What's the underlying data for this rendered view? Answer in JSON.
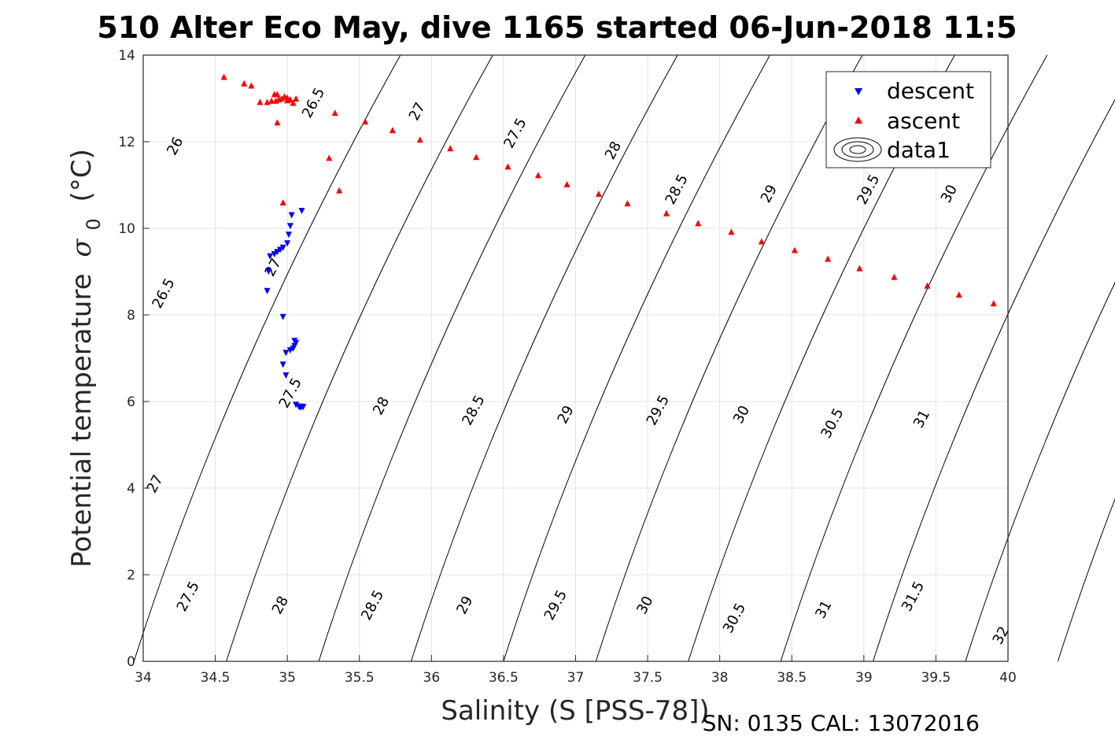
{
  "title": "510 Alter Eco May, dive 1165 started 06-Jun-2018 11:5",
  "footer": "SN: 0135  CAL: 13072016",
  "chart_data": {
    "type": "scatter",
    "xlabel": "Salinity (S [PSS-78])",
    "ylabel_main": "Potential temperature",
    "ylabel_symbol": "σ",
    "ylabel_subscript": "0",
    "ylabel_unit": "(°C)",
    "xlim": [
      34,
      40
    ],
    "ylim": [
      0,
      14
    ],
    "xticks": [
      "34",
      "34.5",
      "35",
      "35.5",
      "36",
      "36.5",
      "37",
      "37.5",
      "38",
      "38.5",
      "39",
      "39.5",
      "40"
    ],
    "yticks": [
      "0",
      "2",
      "4",
      "6",
      "8",
      "10",
      "12",
      "14"
    ],
    "grid": true,
    "legend_position": "top-right",
    "series": [
      {
        "name": "descent",
        "marker": "down-triangle",
        "color": "#0000ff",
        "points": [
          [
            35.1,
            10.4
          ],
          [
            35.03,
            10.3
          ],
          [
            35.02,
            10.05
          ],
          [
            35.01,
            9.85
          ],
          [
            35.0,
            9.65
          ],
          [
            34.97,
            9.55
          ],
          [
            34.95,
            9.5
          ],
          [
            34.93,
            9.45
          ],
          [
            34.91,
            9.4
          ],
          [
            34.88,
            9.35
          ],
          [
            34.87,
            9.0
          ],
          [
            34.86,
            8.55
          ],
          [
            34.97,
            7.95
          ],
          [
            35.05,
            7.4
          ],
          [
            35.06,
            7.35
          ],
          [
            35.05,
            7.28
          ],
          [
            35.04,
            7.22
          ],
          [
            35.02,
            7.18
          ],
          [
            34.99,
            7.12
          ],
          [
            34.97,
            6.85
          ],
          [
            34.99,
            6.6
          ],
          [
            35.06,
            5.92
          ],
          [
            35.08,
            5.88
          ],
          [
            35.09,
            5.86
          ],
          [
            35.1,
            5.88
          ],
          [
            35.11,
            5.87
          ]
        ]
      },
      {
        "name": "ascent",
        "marker": "up-triangle",
        "color": "#ff0000",
        "points": [
          [
            34.56,
            13.5
          ],
          [
            34.7,
            13.35
          ],
          [
            34.75,
            13.3
          ],
          [
            34.91,
            13.1
          ],
          [
            34.93,
            13.1
          ],
          [
            34.98,
            13.05
          ],
          [
            35.0,
            13.02
          ],
          [
            34.96,
            13.0
          ],
          [
            34.94,
            12.98
          ],
          [
            34.92,
            12.95
          ],
          [
            34.89,
            12.95
          ],
          [
            34.86,
            12.92
          ],
          [
            34.81,
            12.92
          ],
          [
            35.0,
            12.96
          ],
          [
            35.02,
            12.98
          ],
          [
            35.06,
            13.0
          ],
          [
            35.04,
            12.9
          ],
          [
            34.93,
            12.45
          ],
          [
            35.33,
            12.67
          ],
          [
            35.54,
            12.47
          ],
          [
            35.73,
            12.27
          ],
          [
            35.92,
            12.05
          ],
          [
            36.13,
            11.85
          ],
          [
            36.31,
            11.65
          ],
          [
            36.53,
            11.43
          ],
          [
            36.74,
            11.23
          ],
          [
            36.94,
            11.02
          ],
          [
            37.16,
            10.8
          ],
          [
            37.36,
            10.58
          ],
          [
            37.63,
            10.35
          ],
          [
            37.85,
            10.12
          ],
          [
            38.08,
            9.92
          ],
          [
            38.29,
            9.7
          ],
          [
            38.52,
            9.5
          ],
          [
            38.75,
            9.3
          ],
          [
            38.97,
            9.08
          ],
          [
            39.21,
            8.88
          ],
          [
            39.44,
            8.68
          ],
          [
            39.66,
            8.47
          ],
          [
            39.9,
            8.27
          ],
          [
            35.29,
            11.63
          ],
          [
            35.36,
            10.88
          ],
          [
            34.97,
            10.6
          ]
        ]
      },
      {
        "name": "data1",
        "marker": "contour",
        "color": "#000000"
      }
    ],
    "contours": {
      "levels": [
        26,
        26.5,
        27,
        27.5,
        28,
        28.5,
        29,
        29.5,
        30,
        30.5,
        31,
        31.5,
        32
      ],
      "labels": [
        {
          "text": "26",
          "s": 34.22,
          "t": 11.9
        },
        {
          "text": "26.5",
          "s": 35.18,
          "t": 12.9
        },
        {
          "text": "27",
          "s": 35.9,
          "t": 12.7
        },
        {
          "text": "27.5",
          "s": 36.58,
          "t": 12.2
        },
        {
          "text": "28",
          "s": 37.26,
          "t": 11.8
        },
        {
          "text": "28.5",
          "s": 37.7,
          "t": 10.9
        },
        {
          "text": "29",
          "s": 38.34,
          "t": 10.8
        },
        {
          "text": "29.5",
          "s": 39.03,
          "t": 10.9
        },
        {
          "text": "30",
          "s": 39.59,
          "t": 10.8
        },
        {
          "text": "30.5",
          "s": 40.28,
          "t": 10.7
        },
        {
          "text": "26.5",
          "s": 34.14,
          "t": 8.5
        },
        {
          "text": "27",
          "s": 34.9,
          "t": 9.1
        },
        {
          "text": "27.5",
          "s": 35.02,
          "t": 6.2
        },
        {
          "text": "28",
          "s": 35.65,
          "t": 5.9
        },
        {
          "text": "28.5",
          "s": 36.29,
          "t": 5.8
        },
        {
          "text": "29",
          "s": 36.93,
          "t": 5.7
        },
        {
          "text": "29.5",
          "s": 37.57,
          "t": 5.8
        },
        {
          "text": "30",
          "s": 38.15,
          "t": 5.7
        },
        {
          "text": "30.5",
          "s": 38.78,
          "t": 5.5
        },
        {
          "text": "31",
          "s": 39.4,
          "t": 5.6
        },
        {
          "text": "27",
          "s": 34.08,
          "t": 4.1
        },
        {
          "text": "27.5",
          "s": 34.31,
          "t": 1.5
        },
        {
          "text": "28",
          "s": 34.95,
          "t": 1.3
        },
        {
          "text": "28.5",
          "s": 35.59,
          "t": 1.3
        },
        {
          "text": "29",
          "s": 36.23,
          "t": 1.3
        },
        {
          "text": "29.5",
          "s": 36.86,
          "t": 1.3
        },
        {
          "text": "30",
          "s": 37.48,
          "t": 1.3
        },
        {
          "text": "30.5",
          "s": 38.1,
          "t": 1.0
        },
        {
          "text": "31",
          "s": 38.72,
          "t": 1.2
        },
        {
          "text": "31.5",
          "s": 39.34,
          "t": 1.5
        },
        {
          "text": "32",
          "s": 39.95,
          "t": 0.6
        }
      ]
    }
  }
}
